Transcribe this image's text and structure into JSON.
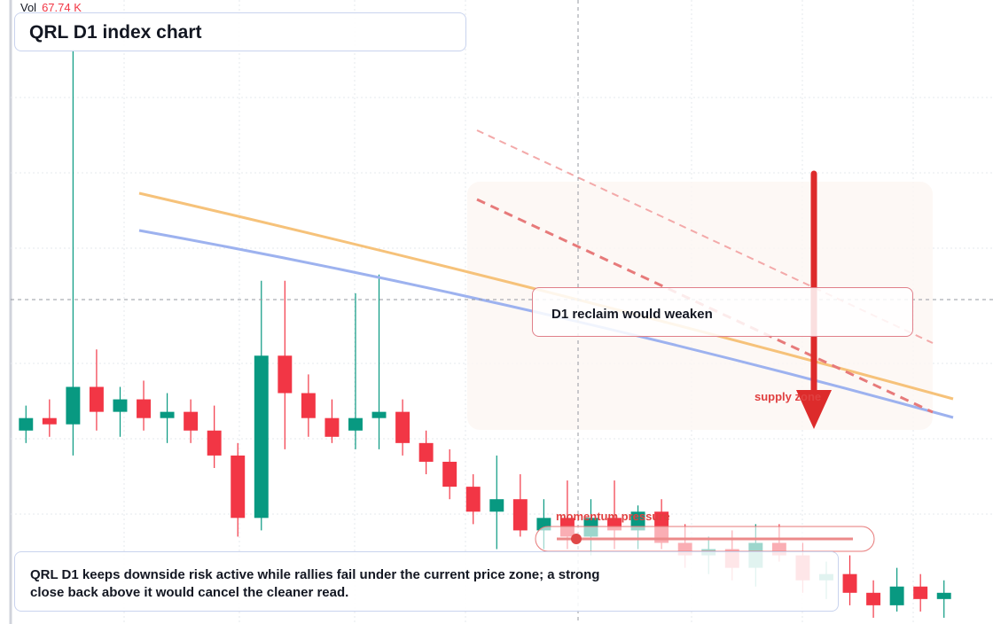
{
  "legend": {
    "label": "Vol",
    "value": "67.74 K"
  },
  "chart_data": {
    "type": "candlestick",
    "title": "QRL D1 index chart",
    "annotations": {
      "reclaim": "D1 reclaim would weaken",
      "supply": "supply zone",
      "momentum": "momentum pressure",
      "note": "QRL D1 keeps downside risk active while rallies fail under the current price zone; a strong close back above it would cancel the cleaner read."
    },
    "up_color": "#089981",
    "down_color": "#f23645",
    "ylim": [
      0,
      100
    ],
    "open": [
      31,
      33,
      32,
      38,
      34,
      36,
      33,
      34,
      31,
      27,
      17,
      43,
      37,
      33,
      31,
      33,
      34,
      29,
      26,
      22,
      18,
      20,
      15,
      17,
      14,
      17,
      15,
      18,
      13,
      11,
      12,
      9,
      13,
      11,
      7,
      8,
      5,
      3,
      6,
      4
    ],
    "high": [
      35,
      36,
      92,
      44,
      38,
      39,
      37,
      36,
      35,
      29,
      55,
      55,
      40,
      36,
      53,
      56,
      36,
      31,
      28,
      24,
      27,
      24,
      20,
      23,
      20,
      23,
      19,
      20,
      16,
      14,
      15,
      16,
      16,
      13,
      10,
      11,
      7,
      9,
      8,
      7
    ],
    "low": [
      29,
      30,
      27,
      31,
      30,
      31,
      29,
      29,
      25,
      14,
      15,
      28,
      30,
      29,
      28,
      28,
      27,
      24,
      20,
      16,
      12,
      14,
      12,
      12,
      11,
      12,
      12,
      12,
      9,
      8,
      7,
      6,
      10,
      5,
      4,
      3,
      1,
      2,
      2,
      1
    ],
    "close": [
      33,
      32,
      38,
      34,
      36,
      33,
      34,
      31,
      27,
      17,
      43,
      37,
      33,
      30,
      33,
      34,
      29,
      26,
      22,
      18,
      20,
      15,
      17,
      14,
      17,
      15,
      18,
      13,
      11,
      12,
      9,
      13,
      11,
      7,
      8,
      5,
      3,
      6,
      4,
      5
    ]
  }
}
